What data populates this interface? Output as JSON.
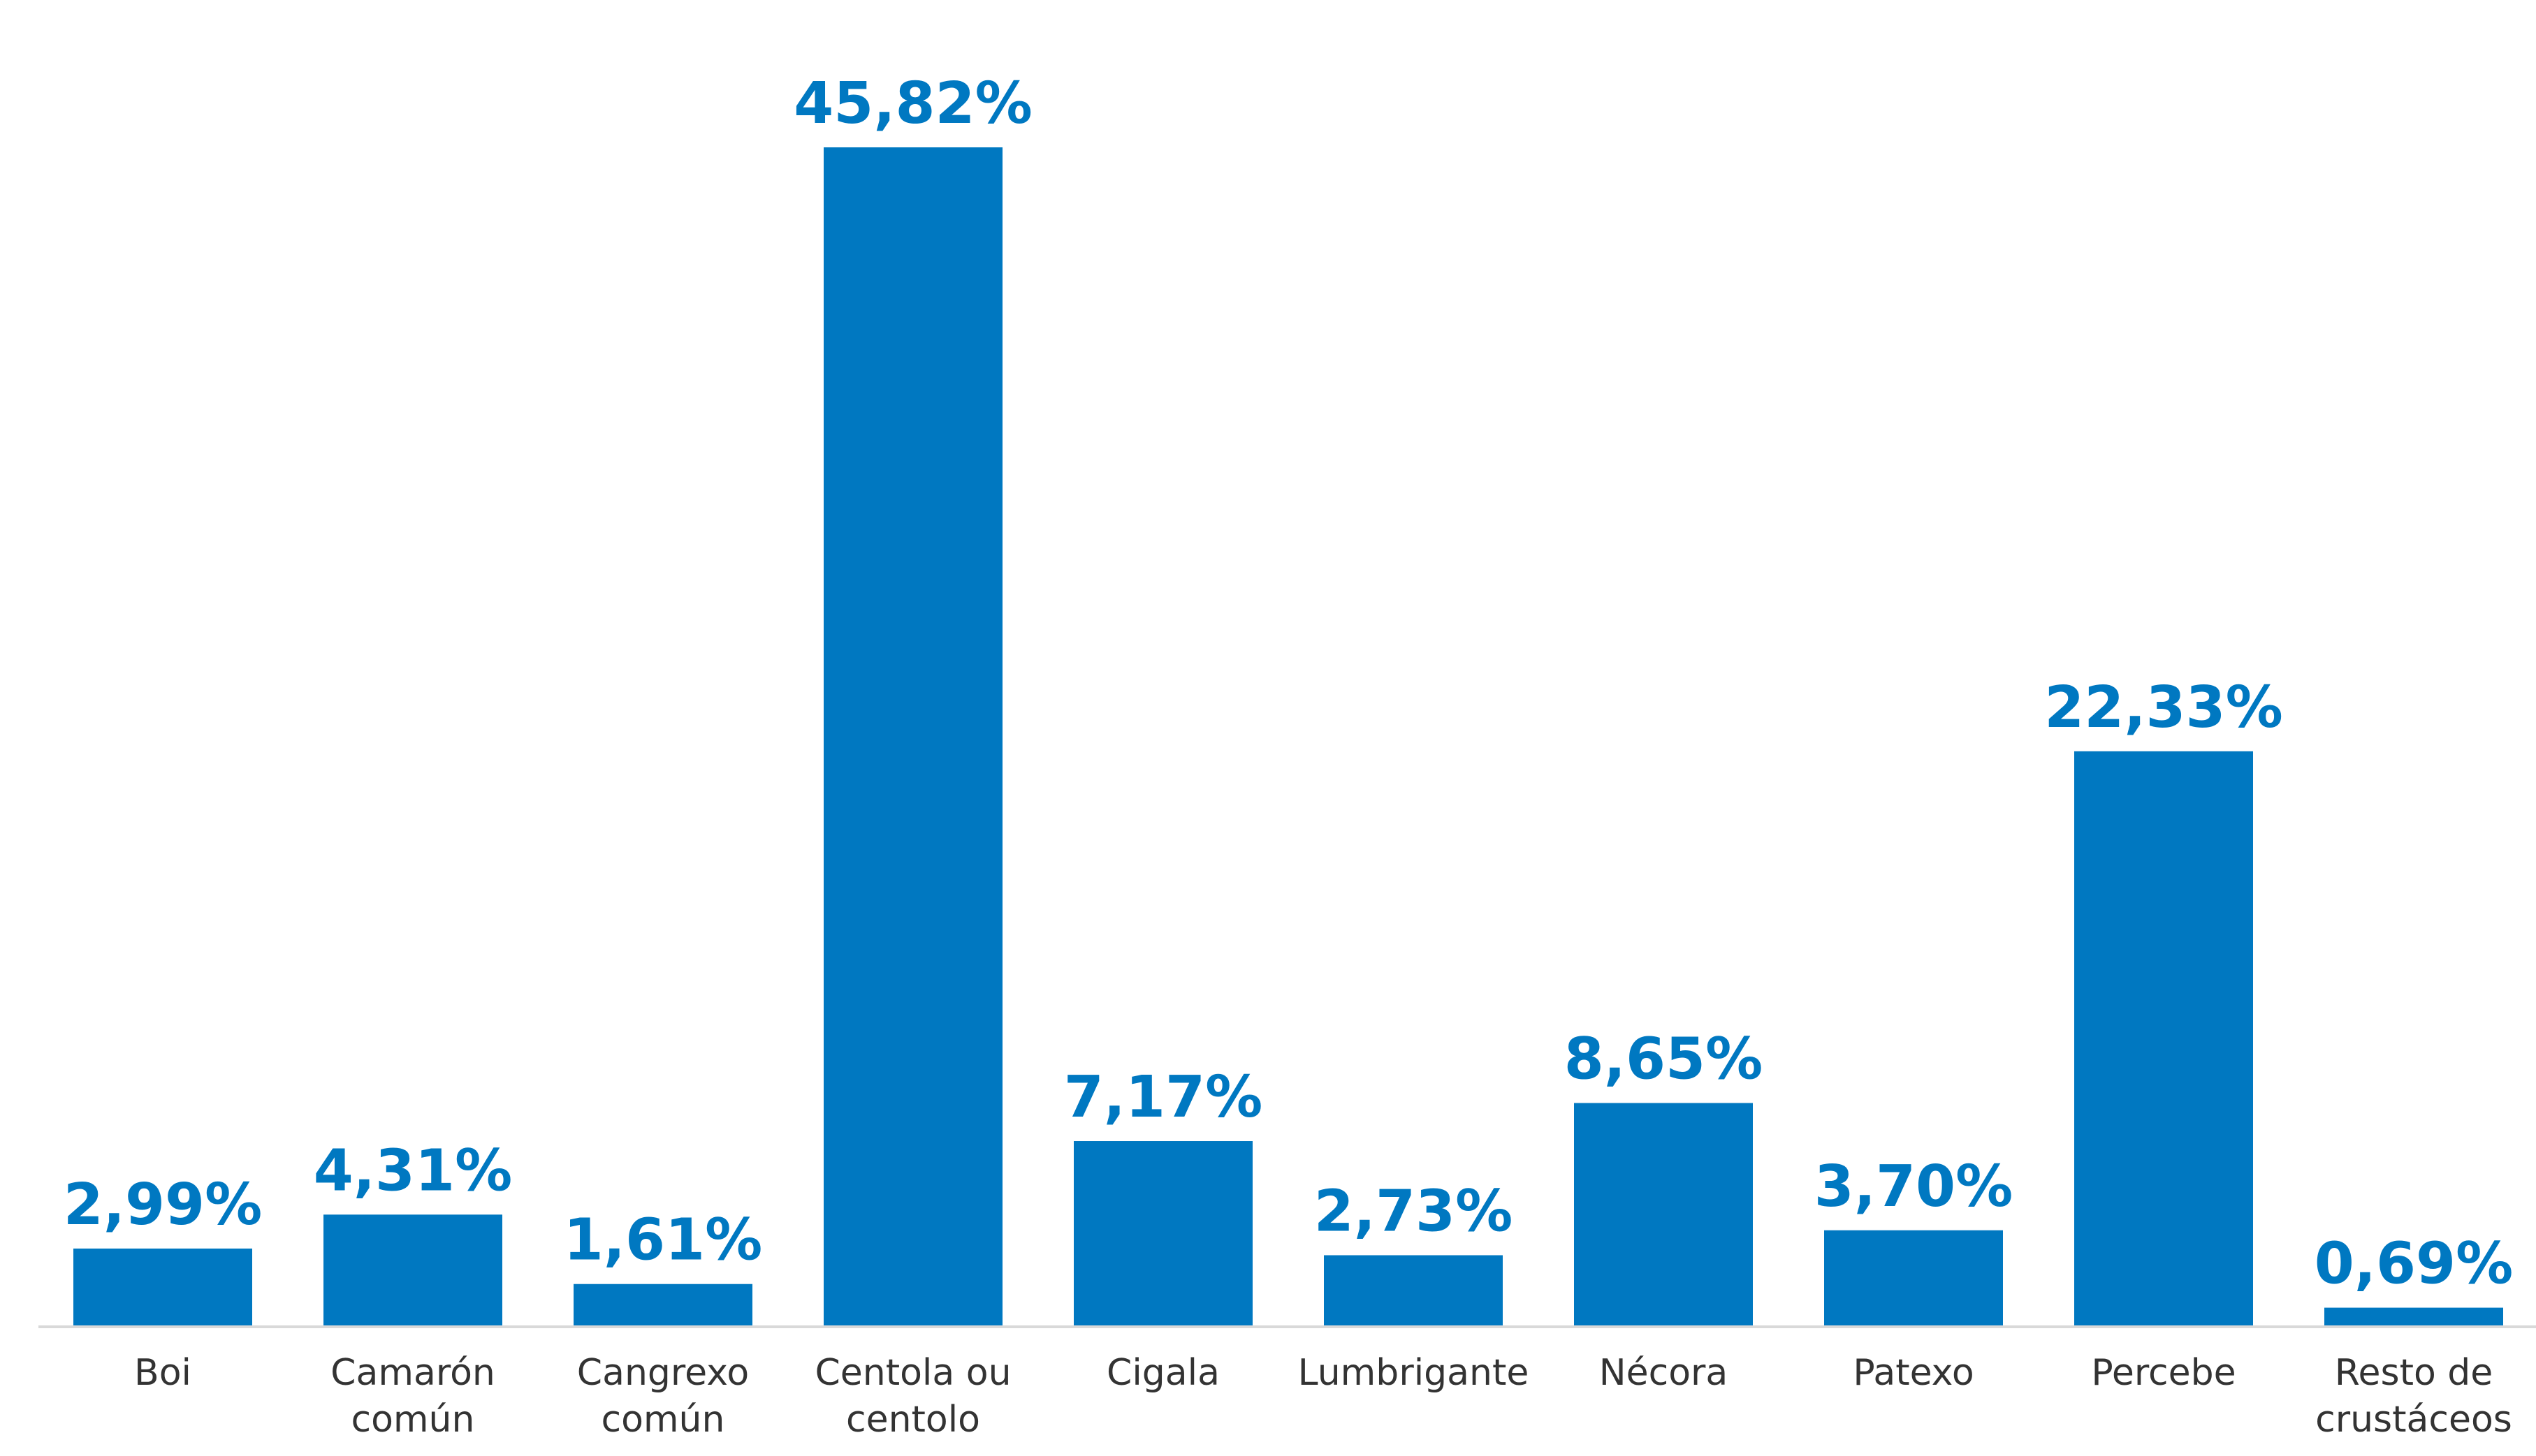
{
  "chart_data": {
    "type": "bar",
    "categories": [
      [
        "Boi"
      ],
      [
        "Camarón",
        "común"
      ],
      [
        "Cangrexo",
        "común"
      ],
      [
        "Centola ou",
        "centolo"
      ],
      [
        "Cigala"
      ],
      [
        "Lumbrigante"
      ],
      [
        "Nécora"
      ],
      [
        "Patexo"
      ],
      [
        "Percebe"
      ],
      [
        "Resto de",
        "crustáceos"
      ]
    ],
    "values": [
      2.99,
      4.31,
      1.61,
      45.82,
      7.17,
      2.73,
      8.65,
      3.7,
      22.33,
      0.69
    ],
    "value_labels": [
      "2,99%",
      "4,31%",
      "1,61%",
      "45,82%",
      "7,17%",
      "2,73%",
      "8,65%",
      "3,70%",
      "22,33%",
      "0,69%"
    ],
    "ylim": [
      0,
      45.82
    ],
    "grid": false,
    "legend": "none",
    "bar_color": "#0078C1",
    "label_color": "#0078C1",
    "baseline_color": "#D9D9D9"
  }
}
